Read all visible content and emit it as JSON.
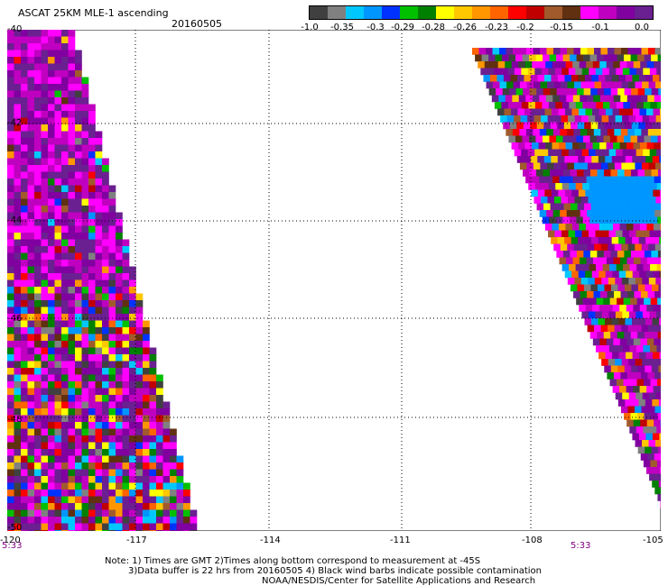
{
  "header": {
    "title": "ASCAT 25KM MLE-1 ascending",
    "date": "20160505"
  },
  "colorbar": {
    "colors": [
      "#404040",
      "#808080",
      "#00c8ff",
      "#0096ff",
      "#0032ff",
      "#00c000",
      "#008000",
      "#ffff00",
      "#ffc800",
      "#ff9600",
      "#ff6400",
      "#ff0000",
      "#c00000",
      "#a05a2c",
      "#603010",
      "#ff00ff",
      "#c000c0",
      "#8000a0",
      "#6a2090"
    ],
    "labels": [
      "-1.0",
      "-0.35",
      "-0.3",
      "-0.29",
      "-0.28",
      "-0.26",
      "-0.23",
      "-0.2",
      "-0.15",
      "-0.1",
      "0.0"
    ]
  },
  "axes": {
    "x_ticks": [
      "-120",
      "-117",
      "-114",
      "-111",
      "-108",
      "-105"
    ],
    "y_ticks": [
      "-40",
      "-42",
      "-44",
      "-46",
      "-48",
      "-50"
    ],
    "x_range": [
      -120,
      -105
    ],
    "y_range": [
      -50,
      -40
    ]
  },
  "swath_times": {
    "left": "5:33",
    "right": "5:33"
  },
  "notes": {
    "line1": "Note: 1) Times are GMT 2)Times along bottom correspond to measurement at -45S",
    "line2": "3)Data buffer is 22 hrs from 20160505 4) Black wind barbs indicate possible contamination",
    "line3": "NOAA/NESDIS/Center for Satellite Applications and Research"
  }
}
